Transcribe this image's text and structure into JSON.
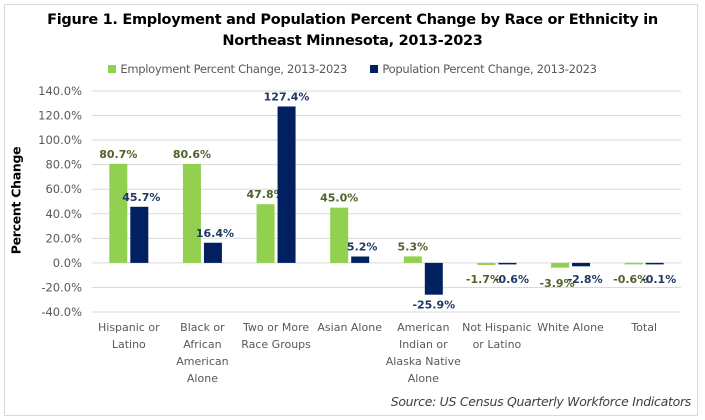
{
  "chart_data": {
    "type": "bar",
    "title": "Figure 1. Employment and Population Percent Change by Race or Ethnicity in Northeast Minnesota, 2013-2023",
    "title_lines": [
      "Figure 1. Employment and Population Percent Change by Race or Ethnicity in",
      "Northeast Minnesota, 2013-2023"
    ],
    "xlabel": "",
    "ylabel": "Percent Change",
    "ylim": [
      -40,
      140
    ],
    "yticks": [
      140,
      120,
      100,
      80,
      60,
      40,
      20,
      0,
      -20,
      -40
    ],
    "ytick_labels": [
      "140.0%",
      "120.0%",
      "100.0%",
      "80.0%",
      "60.0%",
      "40.0%",
      "20.0%",
      "0.0%",
      "-20.0%",
      "-40.0%"
    ],
    "grid": true,
    "legend_position": "top",
    "categories": [
      "Hispanic or Latino",
      "Black or African American Alone",
      "Two or More Race Groups",
      "Asian Alone",
      "American Indian or Alaska Native Alone",
      "Not Hispanic or Latino",
      "White Alone",
      "Total"
    ],
    "category_lines": [
      [
        "Hispanic or",
        "Latino"
      ],
      [
        "Black or",
        "African",
        "American",
        "Alone"
      ],
      [
        "Two or More",
        "Race Groups"
      ],
      [
        "Asian Alone"
      ],
      [
        "American",
        "Indian or",
        "Alaska Native",
        "Alone"
      ],
      [
        "Not Hispanic",
        "or Latino"
      ],
      [
        "White Alone"
      ],
      [
        "Total"
      ]
    ],
    "series": [
      {
        "name": "Employment Percent Change, 2013-2023",
        "color": "#92d050",
        "label_color": "#4f6228",
        "values": [
          80.7,
          80.6,
          47.8,
          45.0,
          5.3,
          -1.7,
          -3.9,
          -0.6
        ],
        "labels": [
          "80.7%",
          "80.6%",
          "47.8%",
          "45.0%",
          "5.3%",
          "-1.7%",
          "-3.9%",
          "-0.6%"
        ]
      },
      {
        "name": "Population Percent Change, 2013-2023",
        "color": "#002060",
        "label_color": "#1f3864",
        "values": [
          45.7,
          16.4,
          127.4,
          5.2,
          -25.9,
          -0.6,
          -2.8,
          -0.1
        ],
        "labels": [
          "45.7%",
          "16.4%",
          "127.4%",
          "5.2%",
          "-25.9%",
          "-0.6%",
          "-2.8%",
          "-0.1%"
        ]
      }
    ],
    "source": "Source: US Census Quarterly Workforce Indicators"
  }
}
